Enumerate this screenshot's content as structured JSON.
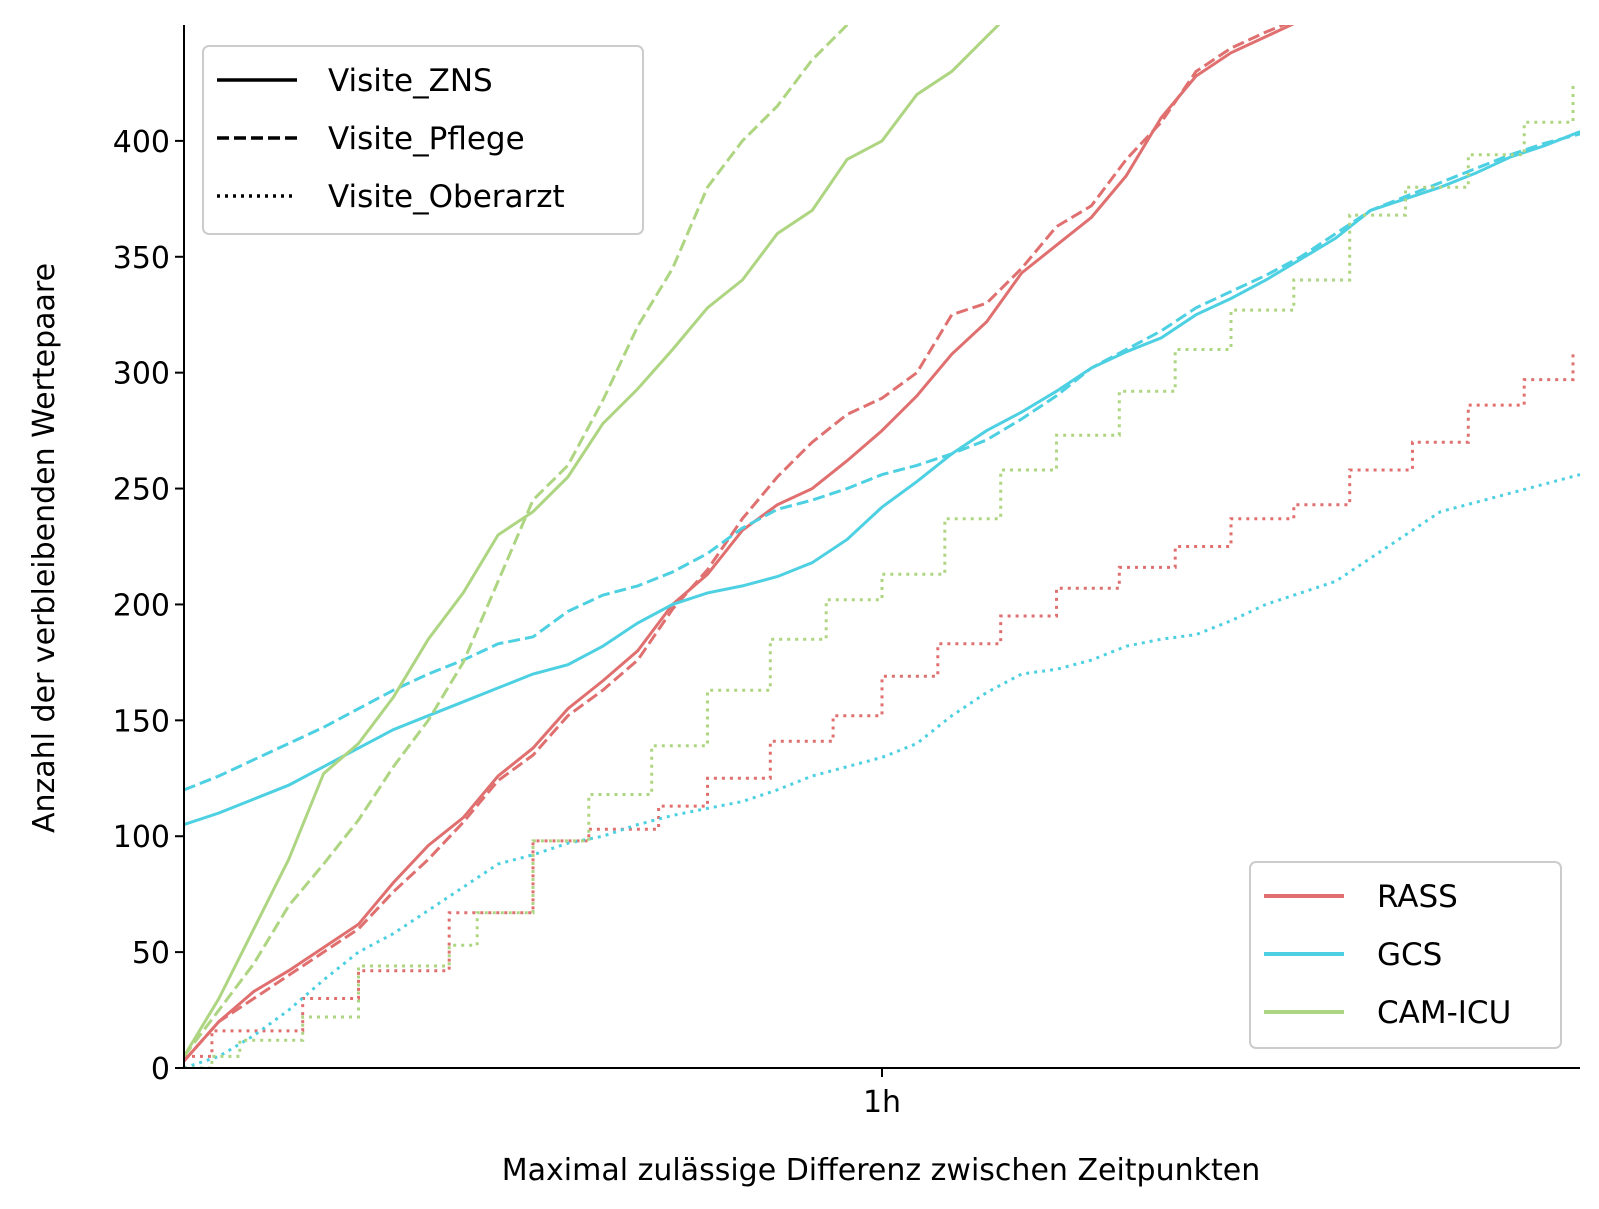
{
  "chart_data": {
    "type": "line",
    "xlabel": "Maximal zulässige Differenz zwischen Zeitpunkten",
    "ylabel": "Anzahl der verbleibenden Wertepaare",
    "x_unit": "hours",
    "xlim": [
      0,
      2
    ],
    "ylim": [
      0,
      450
    ],
    "x_ticks": [
      {
        "value": 1,
        "label": "1h"
      }
    ],
    "y_ticks": [
      0,
      50,
      100,
      150,
      200,
      250,
      300,
      350,
      400
    ],
    "grid": false,
    "legends": {
      "styles": {
        "placement": "upper-left",
        "entries": [
          {
            "label": "Visite_ZNS",
            "dash": "solid"
          },
          {
            "label": "Visite_Pflege",
            "dash": "dashed"
          },
          {
            "label": "Visite_Oberarzt",
            "dash": "dotted"
          }
        ]
      },
      "scores": {
        "placement": "lower-right",
        "entries": [
          {
            "label": "RASS",
            "color": "#e07070"
          },
          {
            "label": "GCS",
            "color": "#4dd0e1"
          },
          {
            "label": "CAM-ICU",
            "color": "#aed581"
          }
        ]
      }
    },
    "series": [
      {
        "score": "RASS",
        "source": "Visite_ZNS",
        "color": "#e07070",
        "dash": "solid",
        "step": false,
        "x": [
          0,
          0.05,
          0.1,
          0.15,
          0.2,
          0.25,
          0.3,
          0.35,
          0.4,
          0.45,
          0.5,
          0.55,
          0.6,
          0.65,
          0.7,
          0.75,
          0.8,
          0.85,
          0.9,
          0.95,
          1.0,
          1.05,
          1.1,
          1.15,
          1.2,
          1.25,
          1.3,
          1.35,
          1.4,
          1.45,
          1.5,
          1.55,
          1.6,
          1.65,
          1.7
        ],
        "y": [
          3,
          20,
          33,
          42,
          52,
          62,
          80,
          96,
          108,
          126,
          138,
          155,
          167,
          180,
          200,
          213,
          232,
          243,
          250,
          262,
          275,
          290,
          308,
          322,
          343,
          355,
          367,
          385,
          410,
          428,
          438,
          445,
          452,
          460,
          468
        ]
      },
      {
        "score": "RASS",
        "source": "Visite_Pflege",
        "color": "#e07070",
        "dash": "dashed",
        "step": false,
        "x": [
          0,
          0.05,
          0.1,
          0.15,
          0.2,
          0.25,
          0.3,
          0.35,
          0.4,
          0.45,
          0.5,
          0.55,
          0.6,
          0.65,
          0.7,
          0.75,
          0.8,
          0.85,
          0.9,
          0.95,
          1.0,
          1.05,
          1.1,
          1.15,
          1.2,
          1.25,
          1.3,
          1.35,
          1.4,
          1.45,
          1.5,
          1.55,
          1.6,
          1.65,
          1.7
        ],
        "y": [
          3,
          20,
          30,
          40,
          50,
          60,
          76,
          90,
          106,
          124,
          135,
          152,
          163,
          176,
          198,
          215,
          237,
          255,
          270,
          282,
          289,
          300,
          325,
          330,
          345,
          363,
          372,
          392,
          408,
          430,
          440,
          447,
          453,
          460,
          468
        ]
      },
      {
        "score": "RASS",
        "source": "Visite_Oberarzt",
        "color": "#e07070",
        "dash": "dotted",
        "step": true,
        "x": [
          0,
          0.04,
          0.17,
          0.25,
          0.38,
          0.5,
          0.58,
          0.68,
          0.75,
          0.84,
          0.93,
          1.0,
          1.08,
          1.17,
          1.25,
          1.34,
          1.42,
          1.5,
          1.59,
          1.67,
          1.76,
          1.84,
          1.92,
          1.99
        ],
        "y": [
          5,
          16,
          30,
          42,
          67,
          98,
          103,
          113,
          125,
          141,
          152,
          169,
          183,
          195,
          207,
          216,
          225,
          237,
          243,
          258,
          270,
          286,
          297,
          310
        ]
      },
      {
        "score": "GCS",
        "source": "Visite_ZNS",
        "color": "#4dd0e1",
        "dash": "solid",
        "step": false,
        "x": [
          0,
          0.05,
          0.1,
          0.15,
          0.2,
          0.25,
          0.3,
          0.35,
          0.4,
          0.45,
          0.5,
          0.55,
          0.6,
          0.65,
          0.7,
          0.75,
          0.8,
          0.85,
          0.9,
          0.95,
          1.0,
          1.05,
          1.1,
          1.15,
          1.2,
          1.25,
          1.3,
          1.35,
          1.4,
          1.45,
          1.5,
          1.55,
          1.6,
          1.65,
          1.7,
          1.75,
          1.8,
          1.85,
          1.9,
          1.95,
          2.0
        ],
        "y": [
          105,
          110,
          116,
          122,
          130,
          138,
          146,
          152,
          158,
          164,
          170,
          174,
          182,
          192,
          200,
          205,
          208,
          212,
          218,
          228,
          242,
          253,
          265,
          275,
          283,
          292,
          302,
          309,
          315,
          325,
          332,
          340,
          349,
          358,
          370,
          375,
          380,
          386,
          393,
          398,
          404
        ]
      },
      {
        "score": "GCS",
        "source": "Visite_Pflege",
        "color": "#4dd0e1",
        "dash": "dashed",
        "step": false,
        "x": [
          0,
          0.05,
          0.1,
          0.15,
          0.2,
          0.25,
          0.3,
          0.35,
          0.4,
          0.45,
          0.5,
          0.55,
          0.6,
          0.65,
          0.7,
          0.75,
          0.8,
          0.85,
          0.9,
          0.95,
          1.0,
          1.05,
          1.1,
          1.15,
          1.2,
          1.25,
          1.3,
          1.35,
          1.4,
          1.45,
          1.5,
          1.55,
          1.6,
          1.65,
          1.7,
          1.75,
          1.8,
          1.85,
          1.9,
          1.95,
          2.0
        ],
        "y": [
          120,
          126,
          133,
          140,
          147,
          155,
          163,
          170,
          176,
          183,
          186,
          197,
          204,
          208,
          214,
          222,
          233,
          241,
          245,
          250,
          256,
          260,
          265,
          271,
          280,
          290,
          302,
          310,
          318,
          328,
          335,
          342,
          350,
          360,
          370,
          376,
          382,
          388,
          394,
          399,
          403
        ]
      },
      {
        "score": "GCS",
        "source": "Visite_Oberarzt",
        "color": "#4dd0e1",
        "dash": "dotted",
        "step": false,
        "x": [
          0,
          0.05,
          0.1,
          0.15,
          0.2,
          0.25,
          0.3,
          0.35,
          0.4,
          0.45,
          0.5,
          0.55,
          0.6,
          0.65,
          0.7,
          0.75,
          0.8,
          0.85,
          0.9,
          0.95,
          1.0,
          1.05,
          1.1,
          1.15,
          1.2,
          1.25,
          1.3,
          1.35,
          1.4,
          1.45,
          1.5,
          1.55,
          1.6,
          1.65,
          1.7,
          1.75,
          1.8,
          1.85,
          1.9,
          1.95,
          2.0
        ],
        "y": [
          0,
          5,
          14,
          25,
          38,
          50,
          58,
          68,
          78,
          88,
          92,
          97,
          100,
          105,
          109,
          112,
          115,
          120,
          126,
          130,
          134,
          140,
          152,
          162,
          170,
          172,
          176,
          182,
          185,
          187,
          193,
          200,
          205,
          210,
          220,
          230,
          240,
          244,
          248,
          252,
          256
        ]
      },
      {
        "score": "CAM-ICU",
        "source": "Visite_ZNS",
        "color": "#aed581",
        "dash": "solid",
        "step": false,
        "x": [
          0,
          0.05,
          0.1,
          0.15,
          0.2,
          0.25,
          0.3,
          0.35,
          0.4,
          0.45,
          0.5,
          0.55,
          0.6,
          0.65,
          0.7,
          0.75,
          0.8,
          0.85,
          0.9,
          0.95,
          1.0,
          1.05,
          1.1,
          1.15,
          1.2
        ],
        "y": [
          5,
          30,
          60,
          90,
          127,
          140,
          160,
          185,
          205,
          230,
          240,
          255,
          278,
          293,
          310,
          328,
          340,
          360,
          370,
          392,
          400,
          420,
          430,
          445,
          460
        ]
      },
      {
        "score": "CAM-ICU",
        "source": "Visite_Pflege",
        "color": "#aed581",
        "dash": "dashed",
        "step": false,
        "x": [
          0,
          0.05,
          0.1,
          0.15,
          0.2,
          0.25,
          0.3,
          0.35,
          0.4,
          0.45,
          0.5,
          0.55,
          0.6,
          0.65,
          0.7,
          0.75,
          0.8,
          0.85,
          0.9,
          0.95,
          1.0
        ],
        "y": [
          5,
          25,
          45,
          70,
          88,
          107,
          130,
          150,
          175,
          210,
          245,
          260,
          288,
          320,
          345,
          380,
          400,
          415,
          435,
          450,
          465
        ]
      },
      {
        "score": "CAM-ICU",
        "source": "Visite_Oberarzt",
        "color": "#aed581",
        "dash": "dotted",
        "step": true,
        "x": [
          0,
          0.04,
          0.08,
          0.17,
          0.25,
          0.38,
          0.42,
          0.5,
          0.58,
          0.67,
          0.75,
          0.84,
          0.92,
          1.0,
          1.09,
          1.17,
          1.25,
          1.34,
          1.42,
          1.5,
          1.59,
          1.67,
          1.75,
          1.84,
          1.92,
          1.99
        ],
        "y": [
          0,
          5,
          12,
          22,
          44,
          53,
          67,
          98,
          118,
          139,
          163,
          185,
          202,
          213,
          237,
          258,
          273,
          292,
          310,
          327,
          340,
          368,
          380,
          394,
          408,
          425
        ]
      }
    ]
  }
}
